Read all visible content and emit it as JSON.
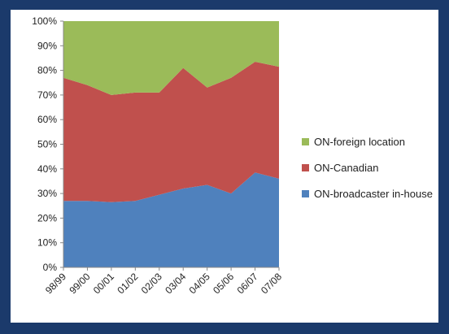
{
  "chart_data": {
    "type": "area",
    "stacked": "percent",
    "categories": [
      "98/99",
      "99/00",
      "00/01",
      "01/02",
      "02/03",
      "03/04",
      "04/05",
      "05/06",
      "06/07",
      "07/08"
    ],
    "series": [
      {
        "name": "ON-broadcaster in-house",
        "color": "#4f81bd",
        "values": [
          27,
          27,
          26.5,
          27,
          29.5,
          32,
          33.5,
          30,
          38.5,
          36
        ]
      },
      {
        "name": "ON-Canadian",
        "color": "#c0504d",
        "values": [
          50,
          47,
          43.5,
          44,
          41.5,
          49,
          39.5,
          47,
          45,
          45.5
        ]
      },
      {
        "name": "ON-foreign location",
        "color": "#9bbb59",
        "values": [
          23,
          26,
          30,
          29,
          29,
          19,
          27,
          23,
          16.5,
          18.5
        ]
      }
    ],
    "y_ticks": [
      "0%",
      "10%",
      "20%",
      "30%",
      "40%",
      "50%",
      "60%",
      "70%",
      "80%",
      "90%",
      "100%"
    ],
    "ylim": [
      0,
      100
    ],
    "grid": false,
    "legend_position": "right"
  }
}
